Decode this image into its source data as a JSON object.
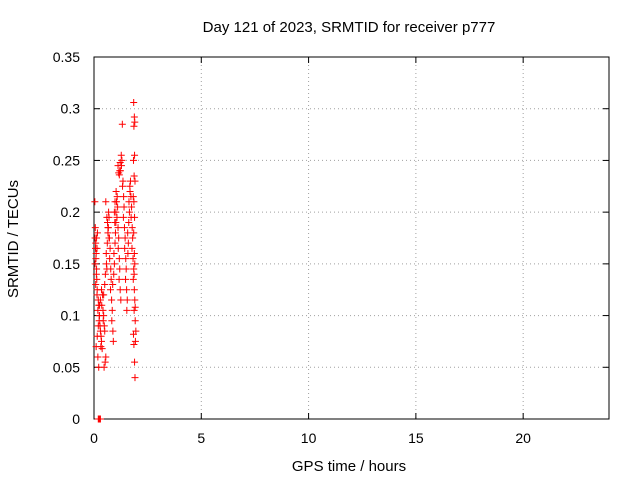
{
  "chart_data": {
    "type": "scatter",
    "title": "Day 121 of 2023, SRMTID for receiver p777",
    "xlabel": "GPS time / hours",
    "ylabel": "SRMTID / TECUs",
    "xlim": [
      0,
      24
    ],
    "ylim": [
      0,
      0.35
    ],
    "xticks": [
      0,
      5,
      10,
      15,
      20
    ],
    "yticks": [
      0,
      0.05,
      0.1,
      0.15,
      0.2,
      0.25,
      0.3,
      0.35
    ],
    "grid": true,
    "marker": "+",
    "color": "#ff0000",
    "x": [
      0.04,
      0.06,
      0.05,
      0.08,
      0.07,
      0.1,
      0.09,
      0.05,
      0.12,
      0.11,
      0.13,
      0.08,
      0.15,
      0.14,
      0.2,
      0.22,
      0.18,
      0.25,
      0.24,
      0.28,
      0.3,
      0.33,
      0.35,
      0.32,
      0.38,
      0.4,
      0.36,
      0.42,
      0.45,
      0.43,
      0.48,
      0.5,
      0.47,
      0.52,
      0.55,
      0.53,
      0.58,
      0.6,
      0.57,
      0.62,
      0.65,
      0.63,
      0.68,
      0.7,
      0.67,
      0.72,
      0.75,
      0.73,
      0.78,
      0.8,
      0.77,
      0.82,
      0.85,
      0.83,
      0.88,
      0.9,
      0.87,
      0.92,
      0.95,
      0.93,
      0.98,
      1.0,
      0.97,
      1.02,
      1.05,
      1.03,
      1.08,
      1.1,
      1.07,
      1.12,
      1.15,
      1.13,
      1.18,
      1.2,
      1.17,
      1.22,
      1.25,
      1.23,
      1.28,
      1.3,
      1.27,
      1.32,
      1.35,
      1.33,
      1.38,
      1.4,
      1.37,
      1.42,
      1.45,
      1.43,
      1.48,
      1.5,
      1.47,
      1.52,
      1.55,
      1.53,
      1.58,
      1.6,
      1.57,
      1.62,
      1.65,
      1.63,
      1.68,
      1.7,
      1.67,
      1.72,
      1.75,
      1.73,
      1.78,
      1.8,
      1.77,
      1.82,
      1.85,
      1.83,
      1.88,
      1.9,
      1.87,
      1.92,
      1.95,
      1.93,
      1.85,
      1.88,
      1.9,
      1.86,
      1.89,
      1.84,
      1.87,
      1.91,
      1.83,
      1.86,
      1.89,
      1.85,
      1.88,
      1.9,
      1.87,
      1.92,
      1.84,
      1.86,
      1.89,
      1.91,
      1.12,
      1.15,
      1.18,
      1.2,
      1.22,
      0.95,
      0.98,
      1.02,
      0.55,
      0.6,
      0.65,
      0.7,
      0.45,
      0.5,
      0.3,
      0.35,
      0.25,
      0.2,
      0.15,
      0.1,
      0.18,
      0.22,
      0.26,
      0.14,
      0.12,
      0.16
    ],
    "y": [
      0.21,
      0.185,
      0.175,
      0.17,
      0.165,
      0.16,
      0.155,
      0.15,
      0.145,
      0.14,
      0.135,
      0.13,
      0.125,
      0.12,
      0.115,
      0.11,
      0.105,
      0.1,
      0.095,
      0.09,
      0.085,
      0.08,
      0.075,
      0.07,
      0.068,
      0.12,
      0.11,
      0.105,
      0.1,
      0.095,
      0.09,
      0.085,
      0.05,
      0.055,
      0.06,
      0.14,
      0.15,
      0.145,
      0.16,
      0.17,
      0.18,
      0.19,
      0.2,
      0.195,
      0.185,
      0.175,
      0.165,
      0.155,
      0.145,
      0.135,
      0.125,
      0.115,
      0.105,
      0.095,
      0.085,
      0.075,
      0.13,
      0.14,
      0.15,
      0.16,
      0.17,
      0.18,
      0.19,
      0.2,
      0.21,
      0.22,
      0.215,
      0.205,
      0.195,
      0.185,
      0.175,
      0.165,
      0.155,
      0.145,
      0.135,
      0.125,
      0.115,
      0.24,
      0.245,
      0.25,
      0.255,
      0.285,
      0.23,
      0.225,
      0.215,
      0.205,
      0.195,
      0.185,
      0.175,
      0.165,
      0.155,
      0.145,
      0.135,
      0.125,
      0.115,
      0.105,
      0.16,
      0.17,
      0.18,
      0.19,
      0.2,
      0.21,
      0.22,
      0.23,
      0.225,
      0.215,
      0.205,
      0.195,
      0.185,
      0.175,
      0.165,
      0.155,
      0.145,
      0.135,
      0.125,
      0.115,
      0.105,
      0.095,
      0.085,
      0.075,
      0.306,
      0.292,
      0.287,
      0.283,
      0.255,
      0.25,
      0.235,
      0.23,
      0.215,
      0.21,
      0.195,
      0.18,
      0.16,
      0.15,
      0.14,
      0.108,
      0.082,
      0.072,
      0.055,
      0.04,
      0.245,
      0.238,
      0.236,
      0.24,
      0.248,
      0.2,
      0.21,
      0.19,
      0.21,
      0.195,
      0.185,
      0.175,
      0.12,
      0.13,
      0.115,
      0.125,
      0.1,
      0.09,
      0.08,
      0.07,
      0.06,
      0.05,
      0.11,
      0.165,
      0.175,
      0.18
    ],
    "x_zero": [
      0.2,
      0.22,
      0.24,
      0.26,
      0.28,
      0.3
    ],
    "y_zero": [
      0,
      0,
      0,
      0,
      0,
      0
    ]
  }
}
